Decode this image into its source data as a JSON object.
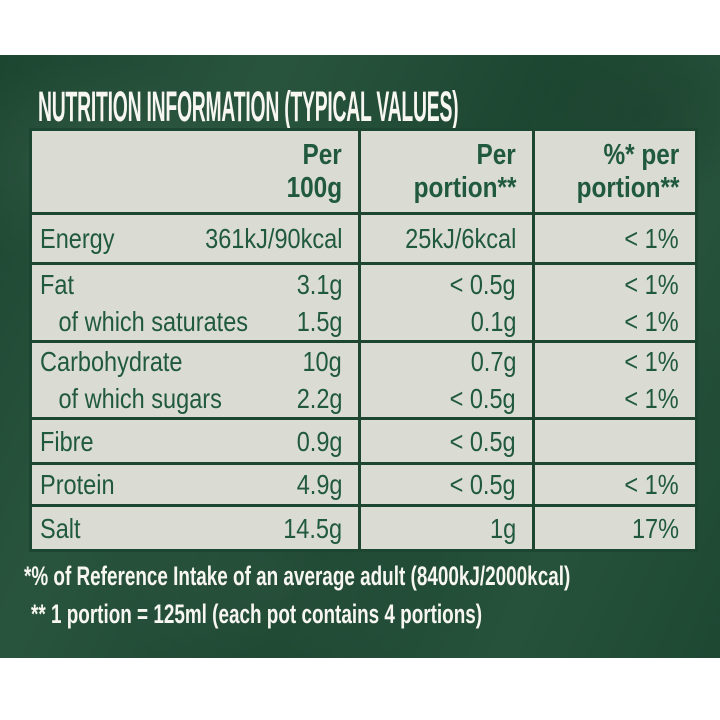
{
  "colors": {
    "panel_green": "#1f4c35",
    "table_background": "#dadbd3",
    "divider_green": "#1d4632",
    "text_green": "#20593f",
    "text_white": "#f7f6f1"
  },
  "panel": {
    "title": "NUTRITION INFORMATION (TYPICAL VALUES)"
  },
  "table": {
    "header": [
      {
        "line1": "Per",
        "line2": "100g"
      },
      {
        "line1": "Per",
        "line2": "portion**"
      },
      {
        "line1": "%* per",
        "line2": "portion**"
      }
    ],
    "rows": [
      {
        "label": "Energy",
        "per100": "361kJ/90kcal",
        "portion": "25kJ/6kcal",
        "percent": "< 1%"
      },
      {
        "label": "Fat",
        "per100": "3.1g",
        "portion": "< 0.5g",
        "percent": "< 1%"
      },
      {
        "label": "of which saturates",
        "per100": "1.5g",
        "portion": "0.1g",
        "percent": "< 1%"
      },
      {
        "label": "Carbohydrate",
        "per100": "10g",
        "portion": "0.7g",
        "percent": "< 1%"
      },
      {
        "label": "of which sugars",
        "per100": "2.2g",
        "portion": "< 0.5g",
        "percent": "< 1%"
      },
      {
        "label": "Fibre",
        "per100": "0.9g",
        "portion": "< 0.5g",
        "percent": ""
      },
      {
        "label": "Protein",
        "per100": "4.9g",
        "portion": "< 0.5g",
        "percent": "< 1%"
      },
      {
        "label": "Salt",
        "per100": "14.5g",
        "portion": "1g",
        "percent": "17%"
      }
    ]
  },
  "footnotes": {
    "reference_intake": "*% of Reference Intake of an average adult (8400kJ/2000kcal)",
    "portion_definition": "** 1 portion = 125ml (each pot contains 4 portions)"
  }
}
